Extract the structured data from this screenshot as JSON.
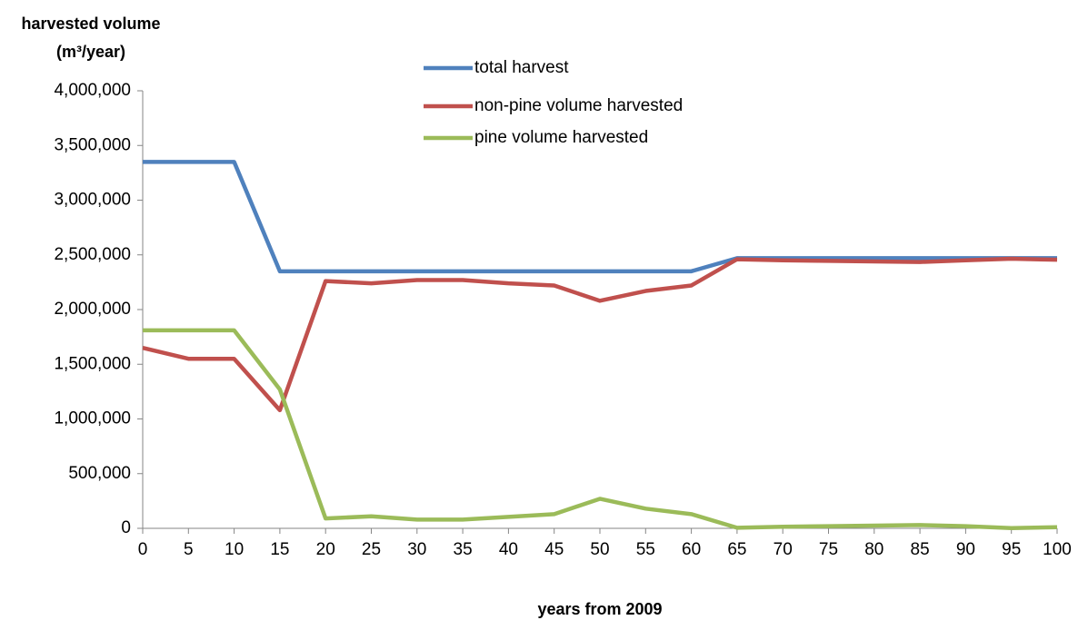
{
  "chart_data": {
    "type": "line",
    "y_label": [
      "harvested volume",
      "(m³/year)"
    ],
    "x_label": "years from 2009",
    "x": [
      0,
      5,
      10,
      15,
      20,
      25,
      30,
      35,
      40,
      45,
      50,
      55,
      60,
      65,
      70,
      75,
      80,
      85,
      90,
      95,
      100
    ],
    "series": [
      {
        "name": "total harvest",
        "color": "#4f81bd",
        "values": [
          3350000,
          3350000,
          3350000,
          2350000,
          2350000,
          2350000,
          2350000,
          2350000,
          2350000,
          2350000,
          2350000,
          2350000,
          2350000,
          2470000,
          2470000,
          2470000,
          2470000,
          2470000,
          2470000,
          2470000,
          2470000
        ]
      },
      {
        "name": "non-pine volume harvested",
        "color": "#c0504d",
        "values": [
          1650000,
          1550000,
          1550000,
          1080000,
          2260000,
          2240000,
          2270000,
          2270000,
          2240000,
          2220000,
          2080000,
          2170000,
          2220000,
          2460000,
          2450000,
          2445000,
          2440000,
          2435000,
          2450000,
          2465000,
          2455000
        ]
      },
      {
        "name": "pine volume harvested",
        "color": "#9bbb59",
        "values": [
          1810000,
          1810000,
          1810000,
          1270000,
          90000,
          110000,
          80000,
          80000,
          105000,
          130000,
          270000,
          180000,
          130000,
          5000,
          15000,
          20000,
          25000,
          30000,
          20000,
          2000,
          10000
        ]
      }
    ],
    "xlim": [
      0,
      100
    ],
    "xticks": [
      0,
      5,
      10,
      15,
      20,
      25,
      30,
      35,
      40,
      45,
      50,
      55,
      60,
      65,
      70,
      75,
      80,
      85,
      90,
      95,
      100
    ],
    "ylim": [
      0,
      4000000
    ],
    "yticks": [
      0,
      {
        "value": 500000,
        "label": "500,000"
      },
      {
        "value": 1000000,
        "label": "1,000,000"
      },
      {
        "value": 1500000,
        "label": "1,500,000"
      },
      {
        "value": 2000000,
        "label": "2,000,000"
      },
      {
        "value": 2500000,
        "label": "2,500,000"
      },
      {
        "value": 3000000,
        "label": "3,000,000"
      },
      {
        "value": 3500000,
        "label": "3,500,000"
      },
      {
        "value": 4000000,
        "label": "4,000,000"
      }
    ],
    "grid": false
  }
}
